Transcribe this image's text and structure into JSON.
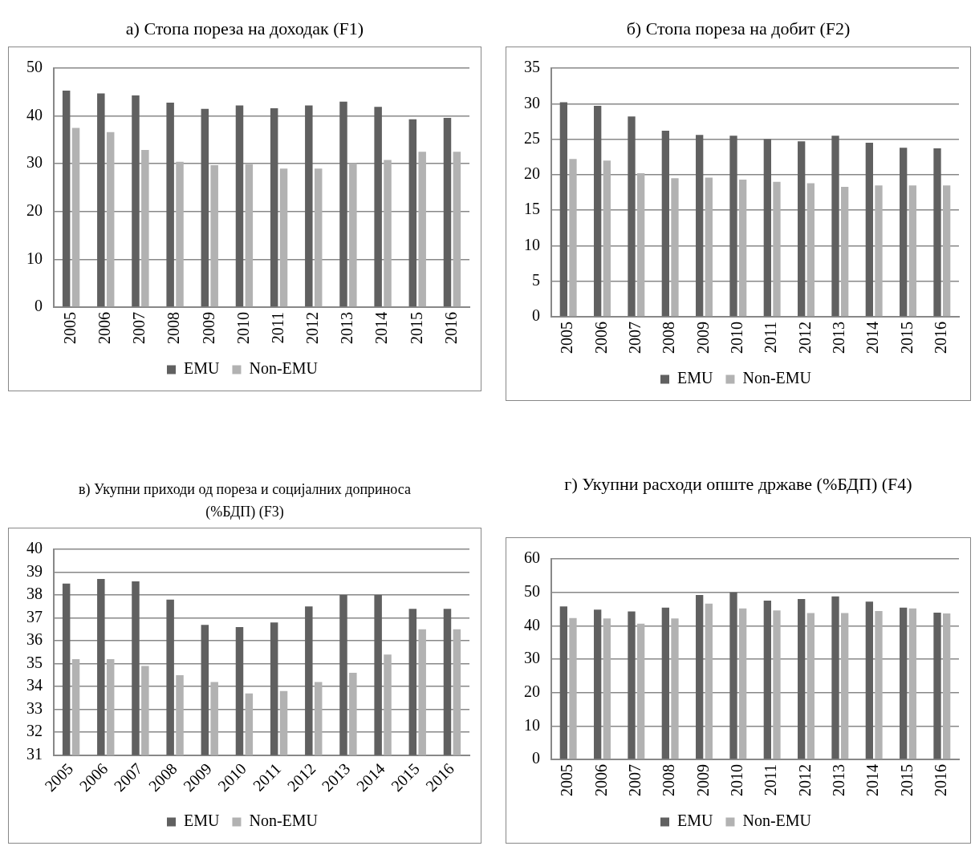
{
  "chart_data": [
    {
      "type": "bar",
      "title": "а) Стопа пореза на доходак (F1)",
      "categories": [
        "2005",
        "2006",
        "2007",
        "2008",
        "2009",
        "2010",
        "2011",
        "2012",
        "2013",
        "2014",
        "2015",
        "2016"
      ],
      "series": [
        {
          "name": "EMU",
          "color": "#606060",
          "values": [
            45.3,
            44.7,
            44.3,
            42.8,
            41.5,
            42.2,
            41.6,
            42.2,
            43.0,
            41.9,
            39.3,
            39.6
          ]
        },
        {
          "name": "Non-EMU",
          "color": "#b2b2b2",
          "values": [
            37.5,
            36.6,
            32.9,
            30.4,
            29.7,
            29.9,
            29.0,
            29.0,
            30.1,
            30.8,
            32.5,
            32.5
          ]
        }
      ],
      "ylim": [
        0,
        50
      ],
      "yticks": [
        0,
        10,
        20,
        30,
        40,
        50
      ],
      "grid": "y",
      "legend": "bottom"
    },
    {
      "type": "bar",
      "title": "б) Стопа пореза на добит (F2)",
      "categories": [
        "2005",
        "2006",
        "2007",
        "2008",
        "2009",
        "2010",
        "2011",
        "2012",
        "2013",
        "2014",
        "2015",
        "2016"
      ],
      "series": [
        {
          "name": "EMU",
          "color": "#606060",
          "values": [
            30.2,
            29.7,
            28.2,
            26.2,
            25.6,
            25.5,
            25.0,
            24.7,
            25.5,
            24.5,
            23.8,
            23.7
          ]
        },
        {
          "name": "Non-EMU",
          "color": "#b2b2b2",
          "values": [
            22.2,
            22.0,
            20.2,
            19.5,
            19.6,
            19.3,
            19.0,
            18.8,
            18.3,
            18.5,
            18.5,
            18.5
          ]
        }
      ],
      "ylim": [
        0,
        35
      ],
      "yticks": [
        0,
        5,
        10,
        15,
        20,
        25,
        30,
        35
      ],
      "grid": "y",
      "legend": "bottom"
    },
    {
      "type": "bar",
      "title": "в) Укупни приходи од пореза и социјалних доприноса (%БДП) (F3)",
      "categories": [
        "2005",
        "2006",
        "2007",
        "2008",
        "2009",
        "2010",
        "2011",
        "2012",
        "2013",
        "2014",
        "2015",
        "2016"
      ],
      "series": [
        {
          "name": "EMU",
          "color": "#606060",
          "values": [
            38.5,
            38.7,
            38.6,
            37.8,
            36.7,
            36.6,
            36.8,
            37.5,
            38.0,
            38.0,
            37.4,
            37.4
          ]
        },
        {
          "name": "Non-EMU",
          "color": "#b2b2b2",
          "values": [
            35.2,
            35.2,
            34.9,
            34.5,
            34.2,
            33.7,
            33.8,
            34.2,
            34.6,
            35.4,
            36.5,
            36.5
          ]
        }
      ],
      "ylim": [
        31,
        40
      ],
      "yticks": [
        31,
        32,
        33,
        34,
        35,
        36,
        37,
        38,
        39,
        40
      ],
      "grid": "y",
      "legend": "bottom"
    },
    {
      "type": "bar",
      "title": "г) Укупни расходи опште државе (%БДП) (F4)",
      "categories": [
        "2005",
        "2006",
        "2007",
        "2008",
        "2009",
        "2010",
        "2011",
        "2012",
        "2013",
        "2014",
        "2015",
        "2016"
      ],
      "series": [
        {
          "name": "EMU",
          "color": "#606060",
          "values": [
            45.8,
            44.8,
            44.3,
            45.4,
            49.2,
            50.0,
            47.5,
            48.0,
            48.8,
            47.2,
            45.4,
            43.9
          ]
        },
        {
          "name": "Non-EMU",
          "color": "#b2b2b2",
          "values": [
            42.3,
            42.2,
            40.6,
            42.2,
            46.6,
            45.2,
            44.6,
            43.8,
            43.8,
            44.4,
            45.2,
            43.7
          ]
        }
      ],
      "ylim": [
        0,
        60
      ],
      "yticks": [
        0,
        10,
        20,
        30,
        40,
        50,
        60
      ],
      "grid": "y",
      "legend": "bottom"
    }
  ]
}
